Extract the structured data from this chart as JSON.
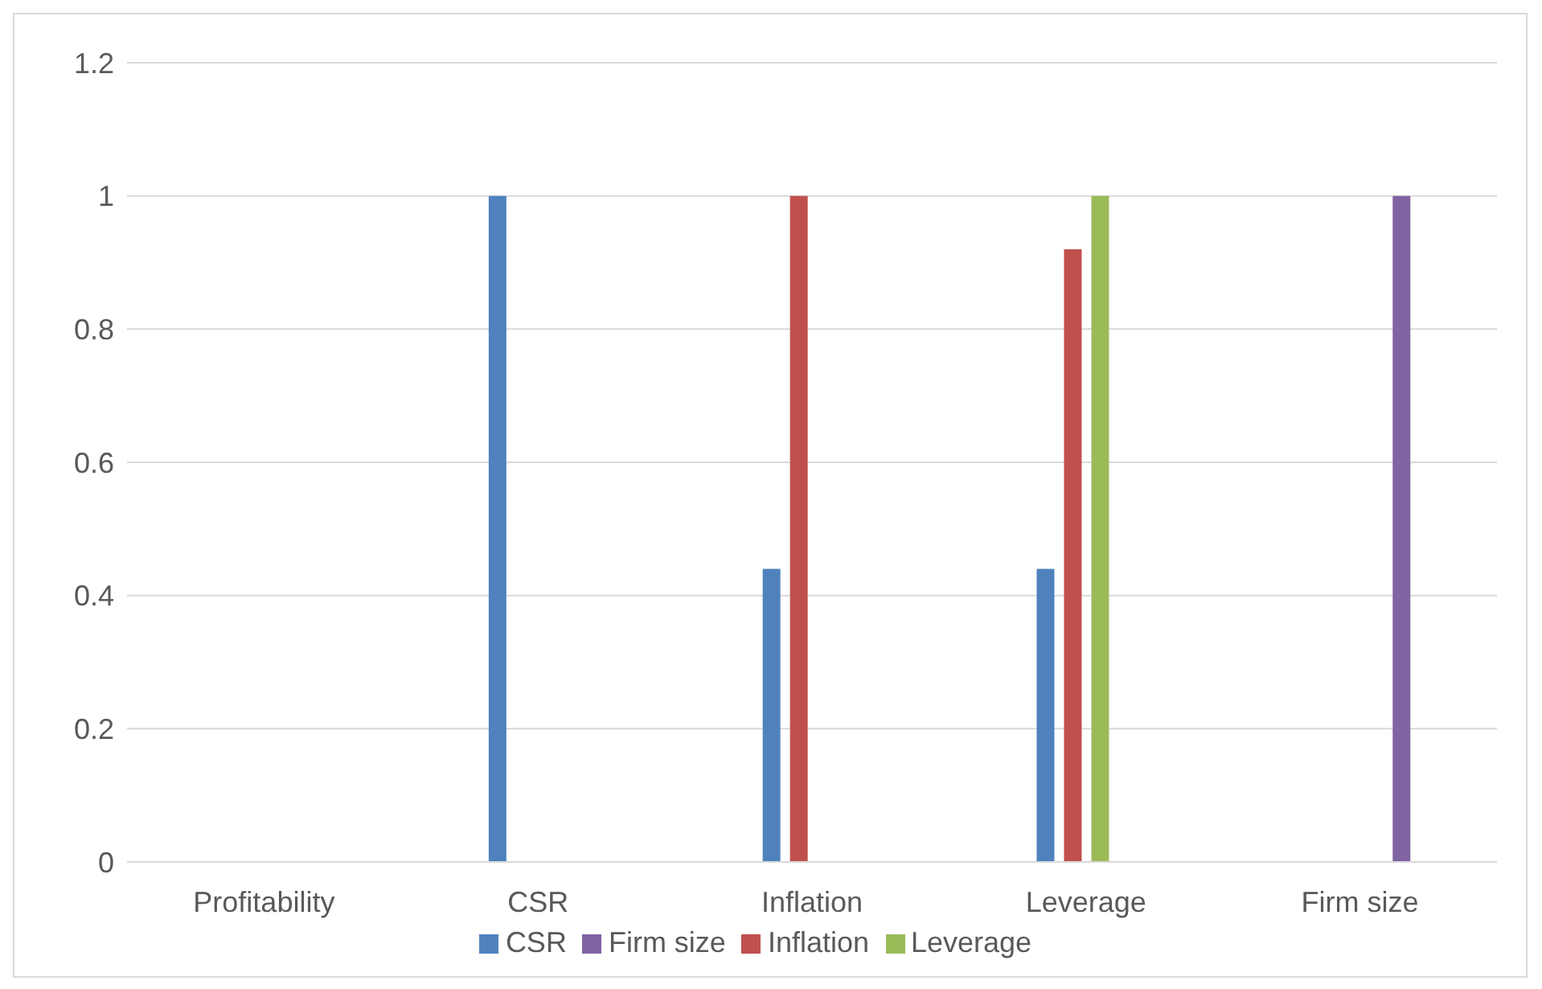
{
  "chart_data": {
    "type": "bar",
    "categories": [
      "Profitability",
      "CSR",
      "Inflation",
      "Leverage",
      "Firm size"
    ],
    "series": [
      {
        "name": "CSR",
        "color": "#4f81bd",
        "values": [
          null,
          1,
          0.44,
          0.44,
          null
        ]
      },
      {
        "name": "Inflation",
        "color": "#c0504d",
        "values": [
          null,
          null,
          1,
          0.92,
          null
        ]
      },
      {
        "name": "Leverage",
        "color": "#9bbb59",
        "values": [
          null,
          null,
          null,
          1,
          null
        ]
      },
      {
        "name": "Firm size",
        "color": "#8064a2",
        "values": [
          null,
          null,
          null,
          null,
          1
        ]
      }
    ],
    "ylim": [
      0,
      1.2
    ],
    "yticks": [
      0,
      0.2,
      0.4,
      0.6,
      0.8,
      1,
      1.2
    ],
    "grid": "y",
    "legend": "bottom"
  }
}
